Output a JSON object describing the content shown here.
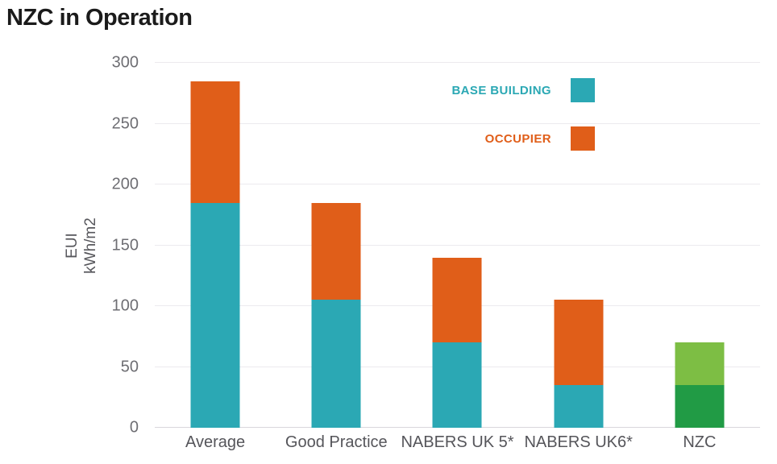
{
  "chart_data": {
    "type": "bar",
    "stacked": true,
    "title": "NZC in Operation",
    "ylabel_lines": [
      "EUI",
      "kWh/m2"
    ],
    "ylim": [
      0,
      300
    ],
    "yticks": [
      300,
      250,
      200,
      150,
      100,
      50,
      0
    ],
    "grid": true,
    "legend_position": "top-right-inside",
    "categories": [
      "Average",
      "Good Practice",
      "NABERS UK 5*",
      "NABERS UK6*",
      "NZC"
    ],
    "bars": [
      {
        "category": "Average",
        "segments": [
          {
            "series": "BASE BUILDING",
            "value": 185,
            "color": "#2BA8B4"
          },
          {
            "series": "OCCUPIER",
            "value": 100,
            "color": "#E05E19"
          }
        ]
      },
      {
        "category": "Good Practice",
        "segments": [
          {
            "series": "BASE BUILDING",
            "value": 105,
            "color": "#2BA8B4"
          },
          {
            "series": "OCCUPIER",
            "value": 80,
            "color": "#E05E19"
          }
        ]
      },
      {
        "category": "NABERS UK 5*",
        "segments": [
          {
            "series": "BASE BUILDING",
            "value": 70,
            "color": "#2BA8B4"
          },
          {
            "series": "OCCUPIER",
            "value": 70,
            "color": "#E05E19"
          }
        ]
      },
      {
        "category": "NABERS UK6*",
        "segments": [
          {
            "series": "BASE BUILDING",
            "value": 35,
            "color": "#2BA8B4"
          },
          {
            "series": "OCCUPIER",
            "value": 70,
            "color": "#E05E19"
          }
        ]
      },
      {
        "category": "NZC",
        "segments": [
          {
            "value": 35,
            "color": "#219B45"
          },
          {
            "value": 35,
            "color": "#7DBE44"
          }
        ]
      }
    ],
    "legend": [
      {
        "label": "BASE BUILDING",
        "color": "#2BA8B4"
      },
      {
        "label": "OCCUPIER",
        "color": "#E05E19"
      }
    ]
  }
}
